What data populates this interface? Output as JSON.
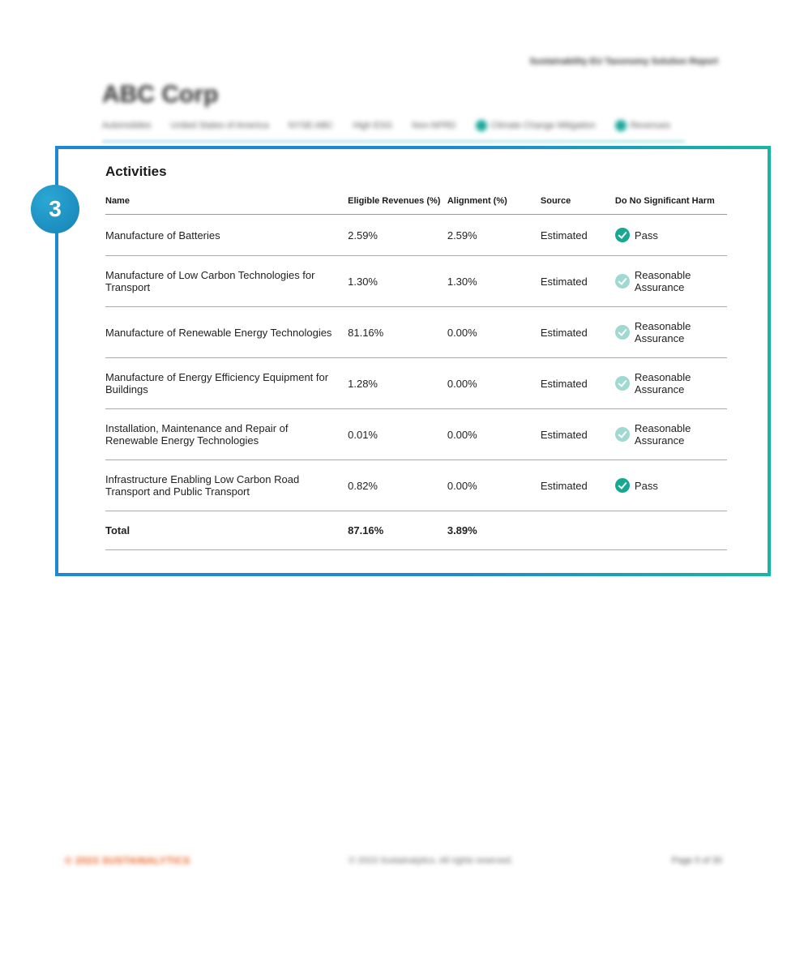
{
  "header": {
    "report_type": "Sustainability EU Taxonomy Solution Report",
    "company": "ABC Corp",
    "meta": [
      "Automobiles",
      "United States of America",
      "NYSE:ABC",
      "High ESG",
      "Non-NFRD",
      "Climate Change Mitigation",
      "Revenues"
    ]
  },
  "callout": {
    "badge": "3",
    "title": "Activities",
    "border_gradient": [
      "#1e88d2",
      "#17b6a2"
    ],
    "badge_color": "#1682b6",
    "columns": [
      "Name",
      "Eligible Revenues (%)",
      "Alignment (%)",
      "Source",
      "Do No Significant Harm"
    ],
    "rows": [
      {
        "name": "Manufacture of Batteries",
        "eligible": "2.59%",
        "alignment": "2.59%",
        "source": "Estimated",
        "dnsh": "Pass",
        "dnsh_level": "strong"
      },
      {
        "name": "Manufacture of Low Carbon Technologies for Transport",
        "eligible": "1.30%",
        "alignment": "1.30%",
        "source": "Estimated",
        "dnsh": "Reasonable Assurance",
        "dnsh_level": "soft"
      },
      {
        "name": "Manufacture of Renewable Energy Technologies",
        "eligible": "81.16%",
        "alignment": "0.00%",
        "source": "Estimated",
        "dnsh": "Reasonable Assurance",
        "dnsh_level": "soft"
      },
      {
        "name": "Manufacture of Energy Efficiency Equipment for Buildings",
        "eligible": "1.28%",
        "alignment": "0.00%",
        "source": "Estimated",
        "dnsh": "Reasonable Assurance",
        "dnsh_level": "soft"
      },
      {
        "name": "Installation, Maintenance and Repair of Renewable Energy Technologies",
        "eligible": "0.01%",
        "alignment": "0.00%",
        "source": "Estimated",
        "dnsh": "Reasonable Assurance",
        "dnsh_level": "soft"
      },
      {
        "name": "Infrastructure Enabling Low Carbon Road Transport and Public Transport",
        "eligible": "0.82%",
        "alignment": "0.00%",
        "source": "Estimated",
        "dnsh": "Pass",
        "dnsh_level": "strong"
      }
    ],
    "total": {
      "label": "Total",
      "eligible": "87.16%",
      "alignment": "3.89%"
    },
    "colors": {
      "name_link": "#2a7b8f",
      "check_strong": "#16a891",
      "check_soft": "#9fd9d2",
      "row_border": "#aaaaaa",
      "header_border": "#999999"
    }
  },
  "footer": {
    "logo": "© 2023 SUSTAINALYTICS",
    "center": "© 2023 Sustainalytics. All rights reserved.",
    "right": "Page 5 of 30"
  }
}
